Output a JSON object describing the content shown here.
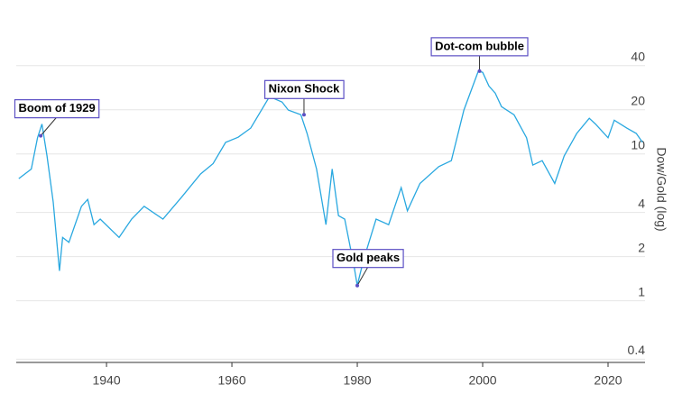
{
  "chart_data": {
    "type": "line",
    "y_label": "Dow/Gold (log)",
    "log_scale": true,
    "grid": true,
    "xlim": [
      1925.6,
      2025.9
    ],
    "xticks": [
      1940,
      1960,
      1980,
      2000,
      2020
    ],
    "ylim": [
      0.38,
      100
    ],
    "yticks": [
      0.4,
      1,
      2,
      4,
      10,
      20,
      40
    ],
    "series": [
      {
        "color": "#29a8e0",
        "x": [
          1926,
          1928,
          1929,
          1929.7,
          1930.5,
          1931.5,
          1932.5,
          1933,
          1934,
          1936,
          1937,
          1938,
          1939,
          1942,
          1944,
          1946,
          1949,
          1952,
          1955,
          1957,
          1959,
          1961,
          1963,
          1966,
          1968,
          1969,
          1971,
          1972,
          1973.5,
          1975,
          1976,
          1977,
          1978,
          1979.5,
          1980,
          1981,
          1983,
          1985,
          1987,
          1988,
          1990,
          1993,
          1995,
          1997,
          1999.3,
          2000,
          2001,
          2002,
          2003,
          2005,
          2007,
          2008,
          2009.5,
          2011.5,
          2013,
          2015,
          2017,
          2018,
          2020,
          2021,
          2023,
          2024.5,
          2025.5
        ],
        "values": [
          6.8,
          7.9,
          12.9,
          16,
          9.7,
          4.7,
          1.6,
          2.7,
          2.5,
          4.4,
          4.9,
          3.3,
          3.6,
          2.7,
          3.6,
          4.4,
          3.6,
          5.1,
          7.3,
          8.6,
          12,
          13,
          15,
          24.6,
          22.6,
          19.9,
          18.5,
          13.8,
          7.9,
          3.3,
          7.9,
          3.8,
          3.6,
          1.7,
          1.27,
          1.9,
          3.6,
          3.3,
          5.9,
          4.1,
          6.3,
          8.2,
          9,
          19.9,
          36.7,
          36,
          29,
          26,
          21,
          18.5,
          12.9,
          8.4,
          9,
          6.3,
          9.7,
          13.8,
          17.5,
          16,
          12.9,
          17,
          15,
          13.8,
          12
        ]
      }
    ],
    "annotations": [
      {
        "text": "Boom of 1929",
        "x": 1929.5,
        "y": 13.3
      },
      {
        "text": "Nixon Shock",
        "x": 1971.5,
        "y": 18.5
      },
      {
        "text": "Gold peaks",
        "x": 1980,
        "y": 1.27
      },
      {
        "text": "Dot-com bubble",
        "x": 1999.5,
        "y": 36.7
      }
    ]
  }
}
